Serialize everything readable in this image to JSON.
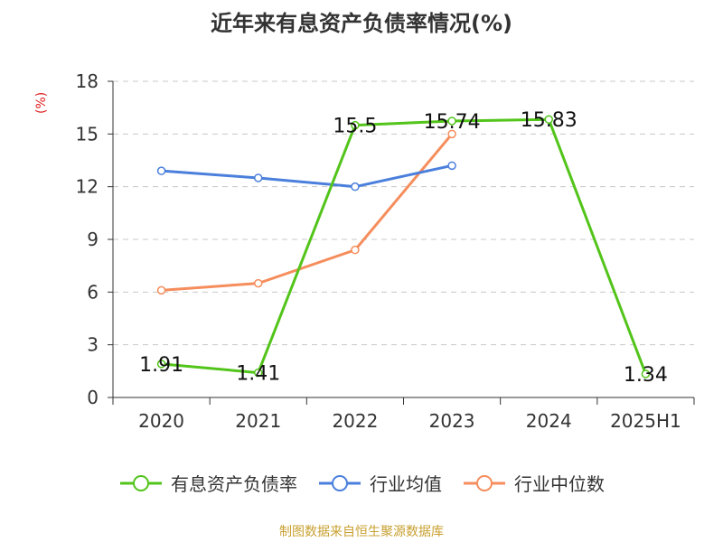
{
  "chart_data": {
    "type": "line",
    "title": "近年来有息资产负债率情况(%)",
    "ylabel": "(%)",
    "xlabel": "",
    "categories": [
      "2020",
      "2021",
      "2022",
      "2023",
      "2024",
      "2025H1"
    ],
    "ylim": [
      0,
      18
    ],
    "yticks": [
      0,
      3,
      6,
      9,
      12,
      15,
      18
    ],
    "grid": true,
    "legend_position": "bottom",
    "series": [
      {
        "name": "有息资产负债率",
        "color": "#52c41a",
        "values": [
          1.91,
          1.41,
          15.5,
          15.74,
          15.83,
          1.34
        ],
        "labels": [
          "1.91",
          "1.41",
          "15.5",
          "15.74",
          "15.83",
          "1.34"
        ]
      },
      {
        "name": "行业均值",
        "color": "#4a7fdc",
        "values": [
          12.9,
          12.5,
          12.0,
          13.2,
          null,
          null
        ],
        "labels": []
      },
      {
        "name": "行业中位数",
        "color": "#f58d5c",
        "values": [
          6.1,
          6.5,
          8.4,
          15.0,
          null,
          null
        ],
        "labels": []
      }
    ]
  },
  "source": "制图数据来自恒生聚源数据库"
}
